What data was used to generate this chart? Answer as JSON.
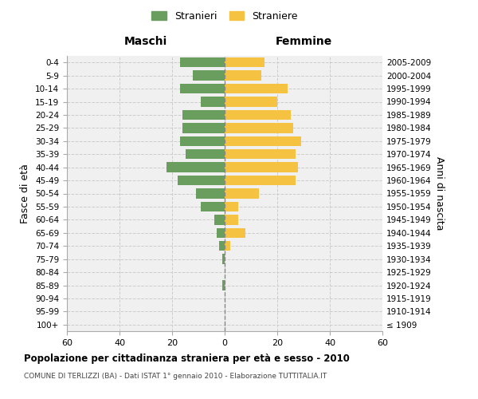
{
  "age_groups": [
    "100+",
    "95-99",
    "90-94",
    "85-89",
    "80-84",
    "75-79",
    "70-74",
    "65-69",
    "60-64",
    "55-59",
    "50-54",
    "45-49",
    "40-44",
    "35-39",
    "30-34",
    "25-29",
    "20-24",
    "15-19",
    "10-14",
    "5-9",
    "0-4"
  ],
  "birth_years": [
    "≤ 1909",
    "1910-1914",
    "1915-1919",
    "1920-1924",
    "1925-1929",
    "1930-1934",
    "1935-1939",
    "1940-1944",
    "1945-1949",
    "1950-1954",
    "1955-1959",
    "1960-1964",
    "1965-1969",
    "1970-1974",
    "1975-1979",
    "1980-1984",
    "1985-1989",
    "1990-1994",
    "1995-1999",
    "2000-2004",
    "2005-2009"
  ],
  "maschi": [
    0,
    0,
    0,
    1,
    0,
    1,
    2,
    3,
    4,
    9,
    11,
    18,
    22,
    15,
    17,
    16,
    16,
    9,
    17,
    12,
    17
  ],
  "femmine": [
    0,
    0,
    0,
    0,
    0,
    0,
    2,
    8,
    5,
    5,
    13,
    27,
    28,
    27,
    29,
    26,
    25,
    20,
    24,
    14,
    15
  ],
  "maschi_color": "#6a9e5e",
  "femmine_color": "#f5c242",
  "background_color": "#f0f0f0",
  "grid_color": "#cccccc",
  "title": "Popolazione per cittadinanza straniera per età e sesso - 2010",
  "subtitle": "COMUNE DI TERLIZZI (BA) - Dati ISTAT 1° gennaio 2010 - Elaborazione TUTTITALIA.IT",
  "ylabel_left": "Fasce di età",
  "ylabel_right": "Anni di nascita",
  "xlabel_left": "Maschi",
  "xlabel_top_right": "Femmine",
  "legend_maschi": "Stranieri",
  "legend_femmine": "Straniere",
  "xlim": 60,
  "bar_height": 0.75
}
